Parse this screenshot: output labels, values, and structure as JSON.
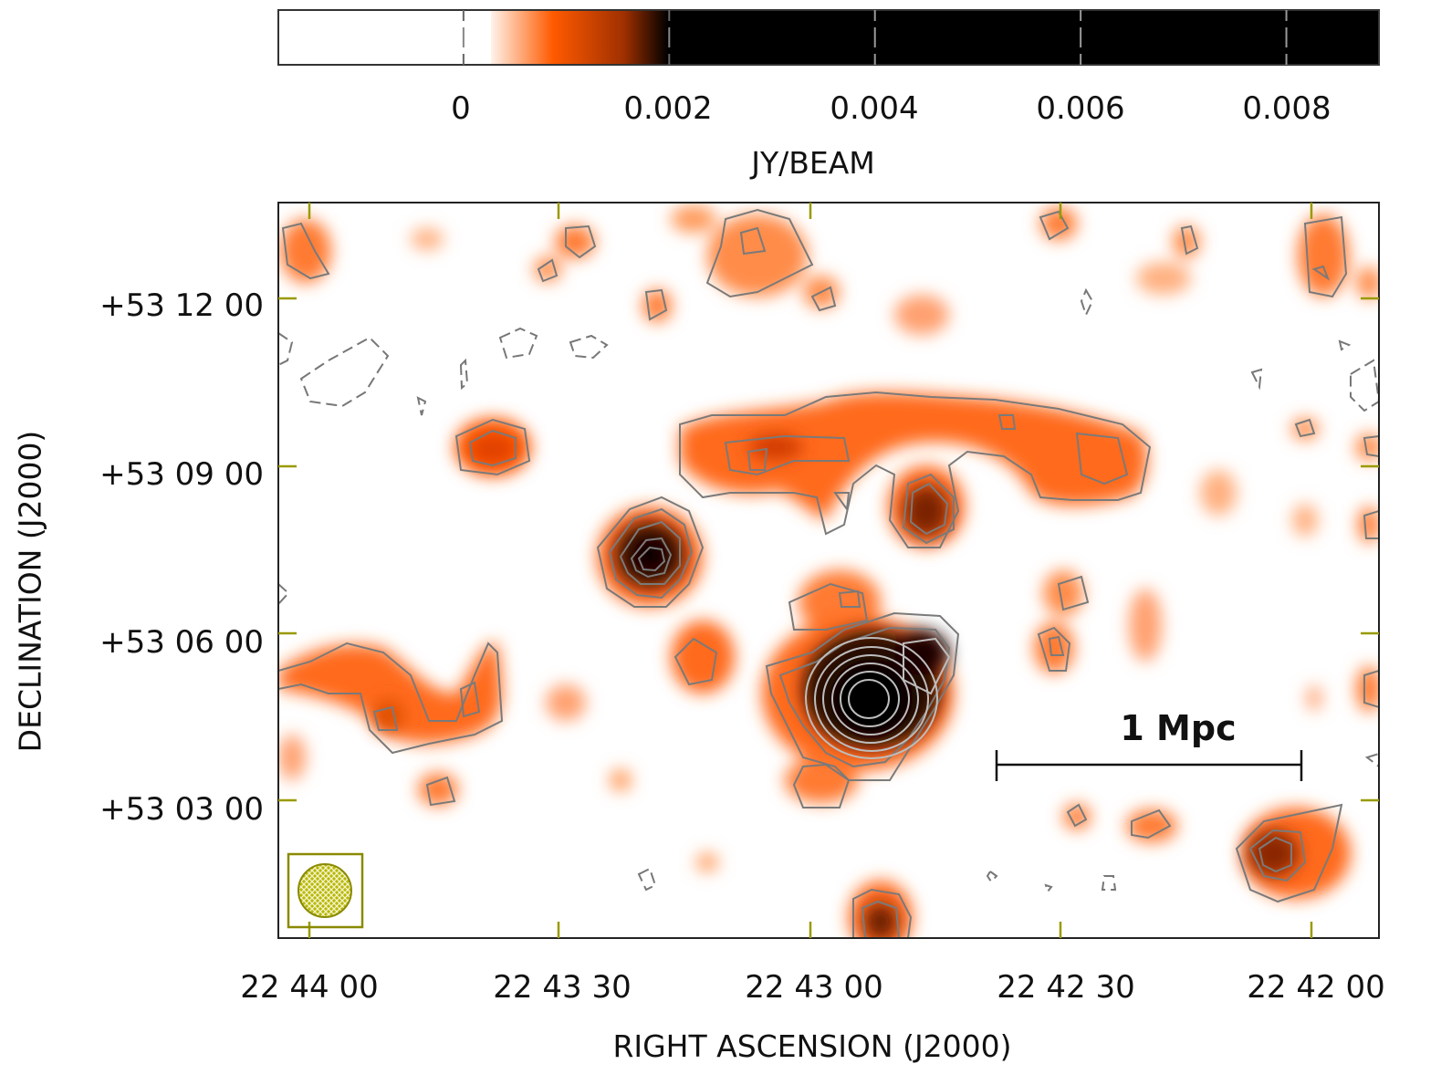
{
  "colorbar": {
    "unit_label": "JY/BEAM",
    "ticks": [
      {
        "value": 0,
        "label": "0"
      },
      {
        "value": 0.002,
        "label": "0.002"
      },
      {
        "value": 0.004,
        "label": "0.004"
      },
      {
        "value": 0.006,
        "label": "0.006"
      },
      {
        "value": 0.008,
        "label": "0.008"
      }
    ],
    "range": [
      -0.0018,
      0.0089
    ],
    "colormap": [
      "#ffffff",
      "#ff5a00",
      "#000000"
    ]
  },
  "map": {
    "xlabel": "RIGHT ASCENSION (J2000)",
    "ylabel": "DECLINATION (J2000)",
    "ra_ticks": [
      "22 44 00",
      "22 43 30",
      "22 43 00",
      "22 42 30",
      "22 42 00"
    ],
    "dec_ticks": [
      "+53 12 00",
      "+53 09 00",
      "+53 06 00",
      "+53 03 00"
    ],
    "scalebar_label": "1 Mpc",
    "tick_color": "#9a9a00",
    "beam_color": "#8a8a00",
    "contour_color": "#808080"
  }
}
